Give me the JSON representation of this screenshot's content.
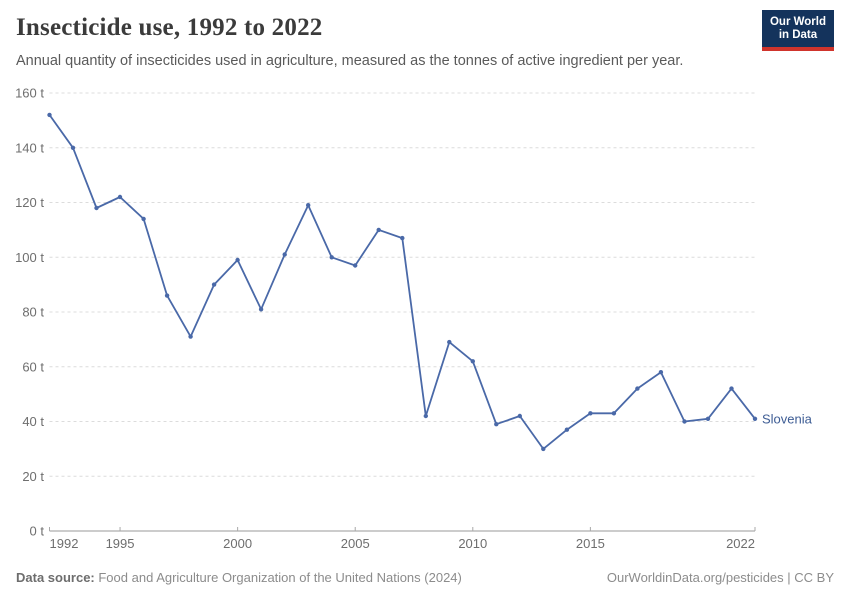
{
  "header": {
    "title": "Insecticide use, 1992 to 2022",
    "subtitle": "Annual quantity of insecticides used in agriculture, measured as the tonnes of active ingredient per year.",
    "logo": {
      "line1": "Our World",
      "line2": "in Data"
    }
  },
  "footer": {
    "source_label": "Data source:",
    "source_text": " Food and Agriculture Organization of the United Nations (2024)",
    "credit": "OurWorldinData.org/pesticides | CC BY"
  },
  "colors": {
    "line": "#4a69a8",
    "entity_label": "#3d5c94",
    "logo_navy": "#14335c",
    "logo_red": "#d0342c",
    "gridline": "#dcdcdc",
    "axis_line": "#9a9a9a",
    "tick_text": "#6e6e6e"
  },
  "chart_data": {
    "type": "line",
    "title": "Insecticide use, 1992 to 2022",
    "xlabel": "",
    "ylabel": "tonnes of active ingredient per year",
    "xlim": [
      1992,
      2022
    ],
    "ylim": [
      0,
      160
    ],
    "grid": "horizontal dashed",
    "legend_position": "end-of-line label",
    "x": [
      1992,
      1993,
      1994,
      1995,
      1996,
      1997,
      1998,
      1999,
      2000,
      2001,
      2002,
      2003,
      2004,
      2005,
      2006,
      2007,
      2008,
      2009,
      2010,
      2011,
      2012,
      2013,
      2014,
      2015,
      2016,
      2017,
      2018,
      2019,
      2020,
      2021,
      2022
    ],
    "series": [
      {
        "name": "Slovenia",
        "color": "#4a69a8",
        "label_color": "#3d5c94",
        "values": [
          152,
          140,
          118,
          122,
          114,
          86,
          71,
          90,
          99,
          81,
          101,
          119,
          100,
          97,
          110,
          107,
          42,
          69,
          62,
          39,
          42,
          30,
          37,
          43,
          43,
          52,
          58,
          40,
          41,
          52,
          41
        ]
      }
    ],
    "y_ticks": [
      {
        "value": 0,
        "label": "0 t"
      },
      {
        "value": 20,
        "label": "20 t"
      },
      {
        "value": 40,
        "label": "40 t"
      },
      {
        "value": 60,
        "label": "60 t"
      },
      {
        "value": 80,
        "label": "80 t"
      },
      {
        "value": 100,
        "label": "100 t"
      },
      {
        "value": 120,
        "label": "120 t"
      },
      {
        "value": 140,
        "label": "140 t"
      },
      {
        "value": 160,
        "label": "160 t"
      }
    ],
    "x_ticks": [
      {
        "value": 1992,
        "label": "1992",
        "align": "start"
      },
      {
        "value": 1995,
        "label": "1995",
        "align": "middle"
      },
      {
        "value": 2000,
        "label": "2000",
        "align": "middle"
      },
      {
        "value": 2005,
        "label": "2005",
        "align": "middle"
      },
      {
        "value": 2010,
        "label": "2010",
        "align": "middle"
      },
      {
        "value": 2015,
        "label": "2015",
        "align": "middle"
      },
      {
        "value": 2022,
        "label": "2022",
        "align": "end"
      }
    ]
  }
}
